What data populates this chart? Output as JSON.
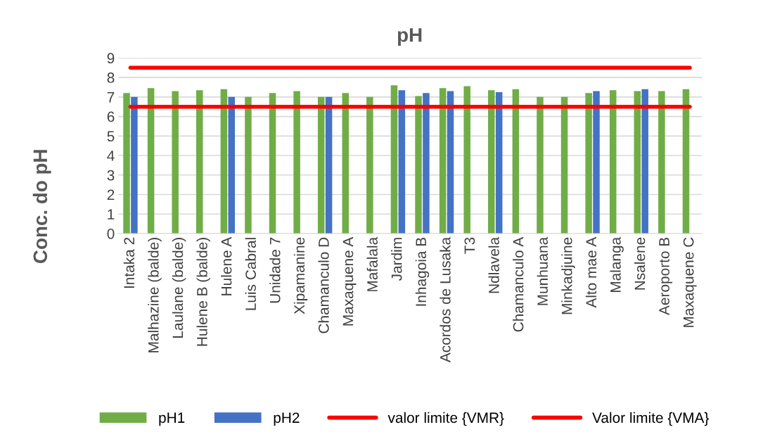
{
  "chart_data": {
    "type": "bar",
    "title": "pH",
    "ylabel": "Conc. do pH",
    "categories": [
      "Intaka 2",
      "Malhazine (balde)",
      "Laulane (balde)",
      "Hulene B (balde)",
      "Hulene A",
      "Luis Cabral",
      "Unidade 7",
      "Xipamanine",
      "Chamanculo D",
      "Maxaquene A",
      "Mafalala",
      "Jardim",
      "Inhagoia B",
      "Acordos de Lusaka",
      "T3",
      "Ndlavela",
      "Chamanculo A",
      "Munhuana",
      "Minkadjuine",
      "Alto mae A",
      "Malanga",
      "Nsalene",
      "Aeroporto B",
      "Maxaquene C"
    ],
    "series": [
      {
        "name": "pH1",
        "color": "#70ad47",
        "values": [
          7.2,
          7.45,
          7.3,
          7.35,
          7.4,
          7.0,
          7.2,
          7.3,
          7.0,
          7.2,
          7.0,
          7.6,
          7.05,
          7.45,
          7.55,
          7.35,
          7.4,
          7.0,
          7.0,
          7.2,
          7.35,
          7.3,
          7.3,
          7.4
        ]
      },
      {
        "name": "pH2",
        "color": "#4472c4",
        "values": [
          7.0,
          null,
          null,
          null,
          7.0,
          null,
          null,
          null,
          7.0,
          null,
          null,
          7.35,
          7.2,
          7.3,
          null,
          7.25,
          null,
          null,
          null,
          7.3,
          null,
          7.4,
          null,
          null
        ]
      },
      {
        "name": "valor limite {VMR}",
        "type": "line",
        "color": "#ff0000",
        "values": [
          6.5,
          6.5,
          6.5,
          6.5,
          6.5,
          6.5,
          6.5,
          6.5,
          6.5,
          6.5,
          6.5,
          6.5,
          6.5,
          6.5,
          6.5,
          6.5,
          6.5,
          6.5,
          6.5,
          6.5,
          6.5,
          6.5,
          6.5,
          6.5
        ]
      },
      {
        "name": "Valor limite {VMA}",
        "type": "line",
        "color": "#ff0000",
        "values": [
          8.5,
          8.5,
          8.5,
          8.5,
          8.5,
          8.5,
          8.5,
          8.5,
          8.5,
          8.5,
          8.5,
          8.5,
          8.5,
          8.5,
          8.5,
          8.5,
          8.5,
          8.5,
          8.5,
          8.5,
          8.5,
          8.5,
          8.5,
          8.5
        ]
      }
    ],
    "ylim": [
      0,
      9
    ],
    "yticks": [
      0,
      1,
      2,
      3,
      4,
      5,
      6,
      7,
      8,
      9
    ],
    "grid": "y",
    "legend": "bottom",
    "marker": "none",
    "line_style": "solid"
  }
}
